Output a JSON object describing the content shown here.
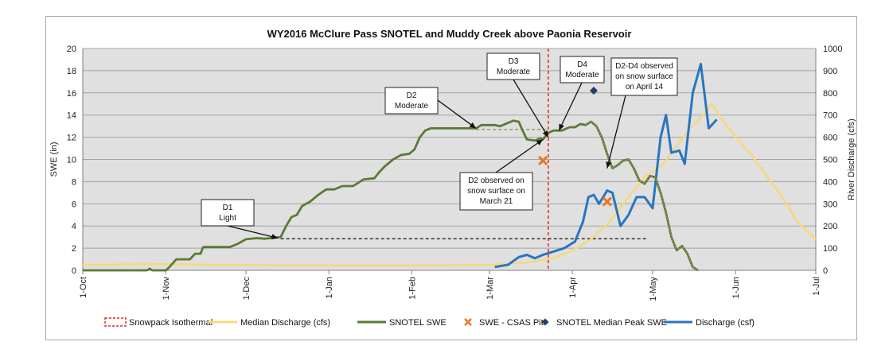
{
  "chart_data": {
    "type": "line",
    "title": "WY2016 McClure Pass SNOTEL and Muddy Creek above Paonia Reservoir",
    "y_left": {
      "label": "SWE (in)",
      "min": 0,
      "max": 20,
      "ticks": [
        "0",
        "2",
        "4",
        "6",
        "8",
        "10",
        "12",
        "14",
        "16",
        "18",
        "20"
      ]
    },
    "y_right": {
      "label": "River Discharge (cfs)",
      "min": 0,
      "max": 1000,
      "ticks": [
        "0",
        "100",
        "200",
        "300",
        "400",
        "500",
        "600",
        "700",
        "800",
        "900",
        "1000"
      ]
    },
    "x_axis": {
      "type": "date",
      "min": "2015-10-01",
      "max": "2016-07-01",
      "ticks": [
        "1-Oct",
        "1-Nov",
        "1-Dec",
        "1-Jan",
        "1-Feb",
        "1-Mar",
        "1-Apr",
        "1-May",
        "1-Jun",
        "1-Jul"
      ],
      "tick_dates": [
        "2015-10-01",
        "2015-11-01",
        "2015-12-01",
        "2016-01-01",
        "2016-02-01",
        "2016-03-01",
        "2016-04-01",
        "2016-05-01",
        "2016-06-01",
        "2016-07-01"
      ]
    },
    "grid": true,
    "legend_position": "bottom",
    "legend": [
      "Snowpack Isothermal",
      "Median Discharge (cfs)",
      "SNOTEL SWE",
      "SWE - CSAS Pit",
      "SNOTEL Median Peak SWE",
      "Discharge (csf)"
    ],
    "colors": {
      "isothermal": "#e8262a",
      "median": "#f7d879",
      "swe": "#5a7a36",
      "pit": "#e87722",
      "peak": "#1f3f66",
      "discharge": "#2a75bf",
      "plot_bg": "#e0e0e0"
    },
    "series": [
      {
        "name": "SNOTEL SWE",
        "axis": "left",
        "points": [
          [
            "2015-10-01",
            0
          ],
          [
            "2015-10-25",
            0
          ],
          [
            "2015-10-26",
            0.15
          ],
          [
            "2015-10-27",
            0
          ],
          [
            "2015-11-01",
            0
          ],
          [
            "2015-11-02",
            0.2
          ],
          [
            "2015-11-05",
            1.0
          ],
          [
            "2015-11-10",
            1.0
          ],
          [
            "2015-11-12",
            1.5
          ],
          [
            "2015-11-14",
            1.5
          ],
          [
            "2015-11-15",
            2.1
          ],
          [
            "2015-11-25",
            2.1
          ],
          [
            "2015-11-28",
            2.4
          ],
          [
            "2015-12-01",
            2.8
          ],
          [
            "2015-12-05",
            2.9
          ],
          [
            "2015-12-08",
            2.85
          ],
          [
            "2015-12-10",
            2.9
          ],
          [
            "2015-12-14",
            3.0
          ],
          [
            "2015-12-16",
            4.0
          ],
          [
            "2015-12-18",
            4.8
          ],
          [
            "2015-12-20",
            5.0
          ],
          [
            "2015-12-22",
            5.8
          ],
          [
            "2015-12-25",
            6.2
          ],
          [
            "2015-12-28",
            6.8
          ],
          [
            "2015-12-31",
            7.3
          ],
          [
            "2016-01-03",
            7.3
          ],
          [
            "2016-01-06",
            7.6
          ],
          [
            "2016-01-10",
            7.6
          ],
          [
            "2016-01-12",
            7.9
          ],
          [
            "2016-01-14",
            8.2
          ],
          [
            "2016-01-18",
            8.3
          ],
          [
            "2016-01-20",
            8.9
          ],
          [
            "2016-01-22",
            9.4
          ],
          [
            "2016-01-25",
            10.0
          ],
          [
            "2016-01-28",
            10.4
          ],
          [
            "2016-01-31",
            10.5
          ],
          [
            "2016-02-02",
            10.9
          ],
          [
            "2016-02-04",
            12.0
          ],
          [
            "2016-02-06",
            12.6
          ],
          [
            "2016-02-08",
            12.8
          ],
          [
            "2016-02-25",
            12.8
          ],
          [
            "2016-02-27",
            13.1
          ],
          [
            "2016-03-03",
            13.1
          ],
          [
            "2016-03-05",
            13.0
          ],
          [
            "2016-03-08",
            13.3
          ],
          [
            "2016-03-10",
            13.5
          ],
          [
            "2016-03-12",
            13.4
          ],
          [
            "2016-03-13",
            12.8
          ],
          [
            "2016-03-15",
            11.8
          ],
          [
            "2016-03-18",
            11.7
          ],
          [
            "2016-03-20",
            11.9
          ],
          [
            "2016-03-21",
            11.8
          ],
          [
            "2016-03-23",
            12.4
          ],
          [
            "2016-03-25",
            12.6
          ],
          [
            "2016-03-28",
            12.6
          ],
          [
            "2016-03-31",
            12.9
          ],
          [
            "2016-04-02",
            12.9
          ],
          [
            "2016-04-04",
            13.2
          ],
          [
            "2016-04-06",
            13.1
          ],
          [
            "2016-04-08",
            13.4
          ],
          [
            "2016-04-10",
            13.0
          ],
          [
            "2016-04-12",
            12.0
          ],
          [
            "2016-04-14",
            10.5
          ],
          [
            "2016-04-16",
            9.2
          ],
          [
            "2016-04-18",
            9.5
          ],
          [
            "2016-04-20",
            9.9
          ],
          [
            "2016-04-22",
            10.0
          ],
          [
            "2016-04-24",
            9.2
          ],
          [
            "2016-04-26",
            8.1
          ],
          [
            "2016-04-28",
            7.8
          ],
          [
            "2016-04-30",
            8.5
          ],
          [
            "2016-05-02",
            8.4
          ],
          [
            "2016-05-04",
            7.0
          ],
          [
            "2016-05-06",
            5.2
          ],
          [
            "2016-05-08",
            3.0
          ],
          [
            "2016-05-10",
            1.8
          ],
          [
            "2016-05-12",
            2.2
          ],
          [
            "2016-05-14",
            1.5
          ],
          [
            "2016-05-16",
            0.3
          ],
          [
            "2016-05-18",
            0
          ]
        ]
      },
      {
        "name": "Median Discharge (cfs)",
        "axis": "right",
        "points": [
          [
            "2015-10-01",
            25
          ],
          [
            "2015-11-01",
            28
          ],
          [
            "2015-12-01",
            24
          ],
          [
            "2016-01-01",
            22
          ],
          [
            "2016-02-01",
            22
          ],
          [
            "2016-03-01",
            25
          ],
          [
            "2016-03-15",
            35
          ],
          [
            "2016-03-25",
            55
          ],
          [
            "2016-04-01",
            90
          ],
          [
            "2016-04-08",
            140
          ],
          [
            "2016-04-15",
            220
          ],
          [
            "2016-04-22",
            330
          ],
          [
            "2016-04-28",
            420
          ],
          [
            "2016-05-05",
            480
          ],
          [
            "2016-05-10",
            560
          ],
          [
            "2016-05-15",
            640
          ],
          [
            "2016-05-20",
            700
          ],
          [
            "2016-05-23",
            750
          ],
          [
            "2016-05-27",
            680
          ],
          [
            "2016-06-01",
            600
          ],
          [
            "2016-06-07",
            520
          ],
          [
            "2016-06-13",
            420
          ],
          [
            "2016-06-19",
            320
          ],
          [
            "2016-06-24",
            220
          ],
          [
            "2016-07-01",
            140
          ]
        ]
      },
      {
        "name": "Discharge (csf)",
        "axis": "right",
        "points": [
          [
            "2016-03-03",
            15
          ],
          [
            "2016-03-08",
            25
          ],
          [
            "2016-03-12",
            60
          ],
          [
            "2016-03-15",
            70
          ],
          [
            "2016-03-18",
            55
          ],
          [
            "2016-03-21",
            70
          ],
          [
            "2016-03-25",
            85
          ],
          [
            "2016-03-29",
            100
          ],
          [
            "2016-04-02",
            130
          ],
          [
            "2016-04-05",
            220
          ],
          [
            "2016-04-07",
            330
          ],
          [
            "2016-04-09",
            340
          ],
          [
            "2016-04-11",
            300
          ],
          [
            "2016-04-14",
            360
          ],
          [
            "2016-04-16",
            350
          ],
          [
            "2016-04-19",
            200
          ],
          [
            "2016-04-22",
            250
          ],
          [
            "2016-04-25",
            330
          ],
          [
            "2016-04-28",
            330
          ],
          [
            "2016-05-01",
            280
          ],
          [
            "2016-05-04",
            600
          ],
          [
            "2016-05-06",
            700
          ],
          [
            "2016-05-08",
            530
          ],
          [
            "2016-05-11",
            540
          ],
          [
            "2016-05-13",
            480
          ],
          [
            "2016-05-16",
            800
          ],
          [
            "2016-05-19",
            930
          ],
          [
            "2016-05-22",
            640
          ],
          [
            "2016-05-25",
            680
          ]
        ]
      }
    ],
    "markers": [
      {
        "name": "SWE - CSAS Pit",
        "axis": "left",
        "points": [
          [
            "2016-03-21",
            9.9
          ],
          [
            "2016-04-14",
            6.2
          ]
        ]
      },
      {
        "name": "SNOTEL Median Peak SWE",
        "axis": "left",
        "points": [
          [
            "2016-04-09",
            16.2
          ]
        ]
      }
    ],
    "reference_lines": [
      {
        "label": "Snowpack Isothermal",
        "x": "2016-03-23"
      },
      {
        "level": 12.7,
        "from": "2016-02-25",
        "to": "2016-03-23"
      },
      {
        "level": 2.85,
        "from": "2015-12-14",
        "to": "2016-04-29"
      }
    ],
    "annotations": [
      {
        "lines": [
          "D1",
          "Light"
        ],
        "target": [
          "2015-12-13",
          2.9
        ]
      },
      {
        "lines": [
          "D2",
          "Moderate"
        ],
        "target": [
          "2016-02-25",
          12.8
        ]
      },
      {
        "lines": [
          "D3",
          "Moderate"
        ],
        "target": [
          "2016-03-23",
          12.0
        ]
      },
      {
        "lines": [
          "D4",
          "Moderate"
        ],
        "target": [
          "2016-03-27",
          12.6
        ]
      },
      {
        "lines": [
          "D2-D4 observed",
          "on snow surface",
          "on April 14"
        ],
        "target": [
          "2016-04-14",
          9.2
        ]
      },
      {
        "lines": [
          "D2 observed on",
          "snow surface on",
          "March 21"
        ],
        "target": [
          "2016-03-21",
          11.8
        ]
      }
    ]
  }
}
